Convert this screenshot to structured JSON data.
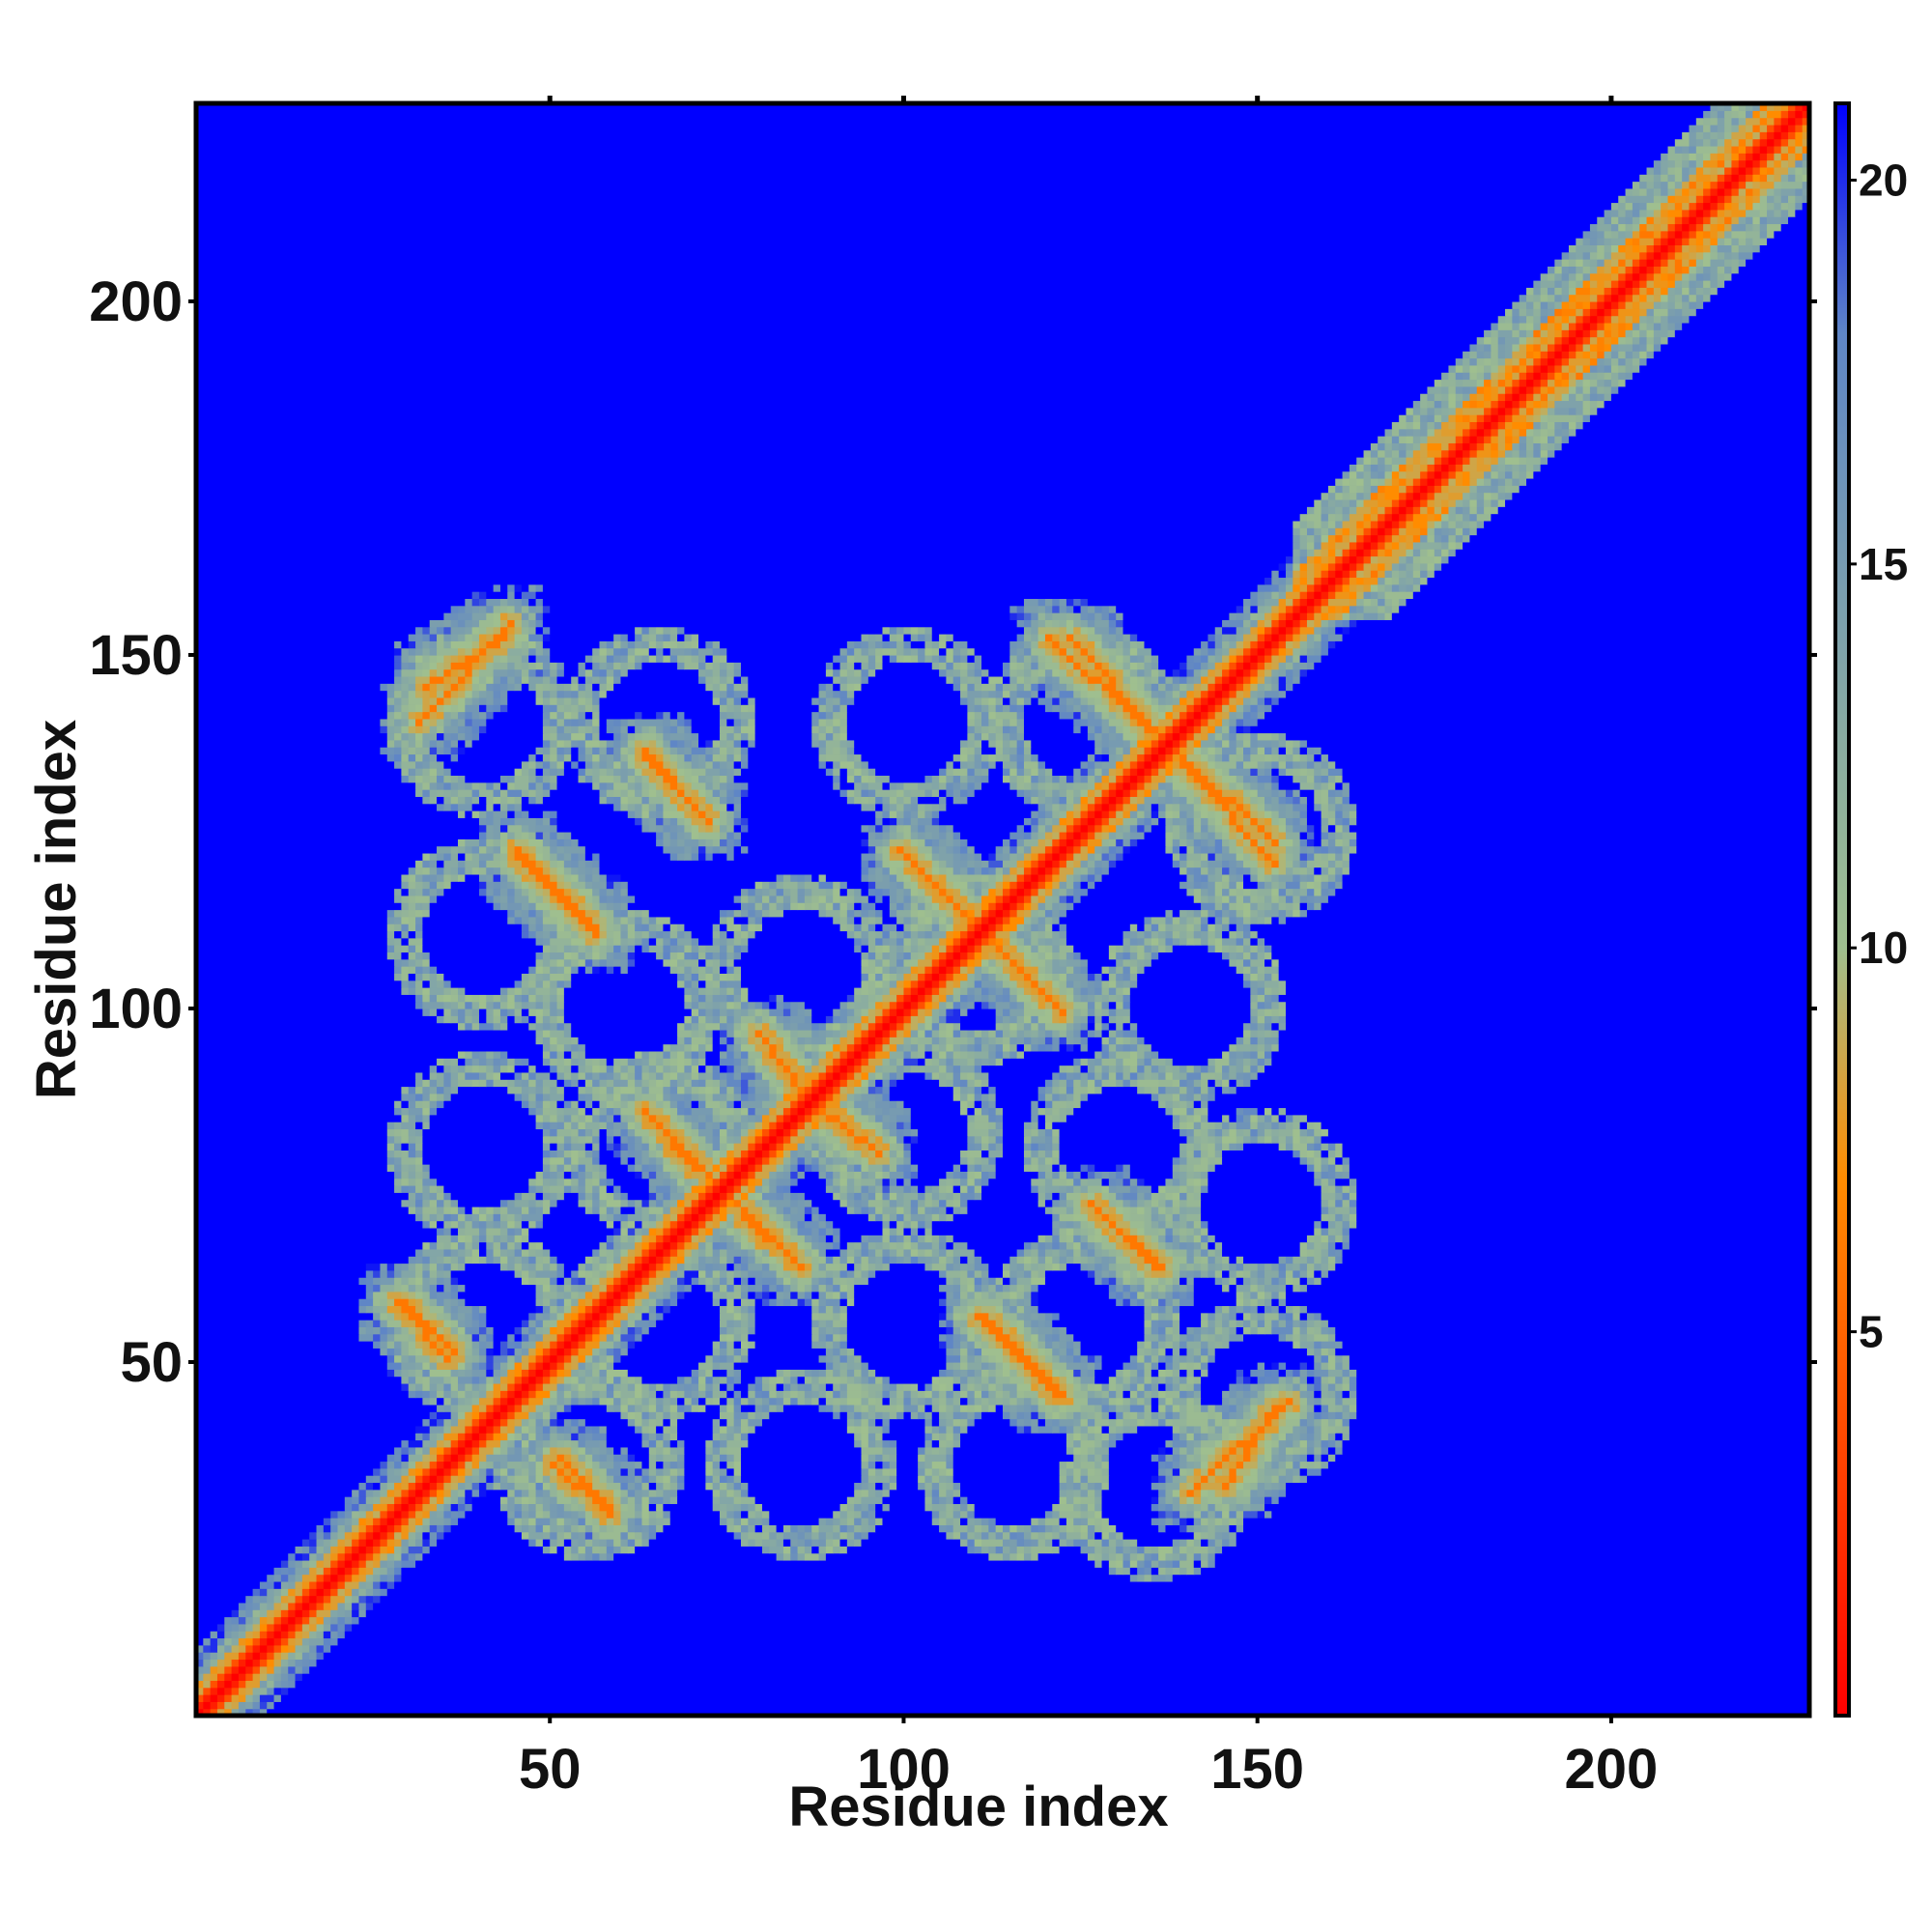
{
  "chart_data": {
    "type": "heatmap",
    "title": "",
    "xlabel": "Residue index",
    "ylabel": "Residue index",
    "xlim": [
      0,
      228
    ],
    "ylim": [
      0,
      228
    ],
    "x_ticks": [
      50,
      100,
      150,
      200
    ],
    "y_ticks": [
      50,
      100,
      150,
      200
    ],
    "x_tick_labels": [
      "50",
      "100",
      "150",
      "200"
    ],
    "y_tick_labels": [
      "50",
      "100",
      "150",
      "200"
    ],
    "grid": false,
    "matrix_size": 228,
    "value_description": "Distance map between residue pairs; values capped at ~21 (blue = far apart)",
    "colorbar": {
      "range": [
        0,
        21
      ],
      "ticks": [
        5,
        10,
        15,
        20
      ],
      "tick_labels": [
        "5",
        "10",
        "15",
        "20"
      ],
      "colors": [
        "#ff0000",
        "#ff8c00",
        "#9fbf8f",
        "#5f86c6",
        "#0000ff"
      ],
      "stops": [
        0,
        7,
        10,
        18,
        21
      ],
      "placement": "right"
    },
    "features": {
      "main_diagonal": {
        "value": 0,
        "description": "self-contact diagonal"
      },
      "near_diagonal_band": {
        "value": 4.5,
        "width_residues": 4
      },
      "close_contact_stripes": [
        {
          "start": [
            44,
            154
          ],
          "end": [
            31,
            140
          ],
          "kind": "parallel",
          "value": 6
        },
        {
          "start": [
            63,
            136
          ],
          "end": [
            71,
            127
          ],
          "kind": "antiparallel",
          "value": 6
        },
        {
          "start": [
            45,
            122
          ],
          "end": [
            56,
            110
          ],
          "kind": "antiparallel",
          "value": 6
        },
        {
          "start": [
            123,
            152
          ],
          "end": [
            135,
            139
          ],
          "kind": "antiparallel",
          "value": 6
        },
        {
          "start": [
            139,
            134
          ],
          "end": [
            152,
            120
          ],
          "kind": "antiparallel",
          "value": 6
        },
        {
          "start": [
            100,
            121
          ],
          "end": [
            122,
            99
          ],
          "kind": "antiparallel",
          "value": 6
        },
        {
          "start": [
            63,
            85
          ],
          "end": [
            70,
            77
          ],
          "kind": "antiparallel",
          "value": 6
        },
        {
          "start": [
            80,
            95
          ],
          "end": [
            85,
            88
          ],
          "kind": "antiparallel",
          "value": 6
        },
        {
          "start": [
            87,
            86
          ],
          "end": [
            96,
            79
          ],
          "kind": "antiparallel",
          "value": 6
        },
        {
          "start": [
            75,
            73
          ],
          "end": [
            85,
            63
          ],
          "kind": "antiparallel",
          "value": 6
        },
        {
          "start": [
            126,
            72
          ],
          "end": [
            135,
            63
          ],
          "kind": "antiparallel",
          "value": 6
        },
        {
          "start": [
            29,
            58
          ],
          "end": [
            36,
            51
          ],
          "kind": "antiparallel",
          "value": 6
        },
        {
          "start": [
            111,
            56
          ],
          "end": [
            121,
            45
          ],
          "kind": "antiparallel",
          "value": 6
        },
        {
          "start": [
            50,
            35
          ],
          "end": [
            58,
            28
          ],
          "kind": "antiparallel",
          "value": 6
        },
        {
          "start": [
            145,
            32
          ],
          "end": [
            152,
            43
          ],
          "kind": "parallel",
          "value": 6
        }
      ]
    }
  }
}
